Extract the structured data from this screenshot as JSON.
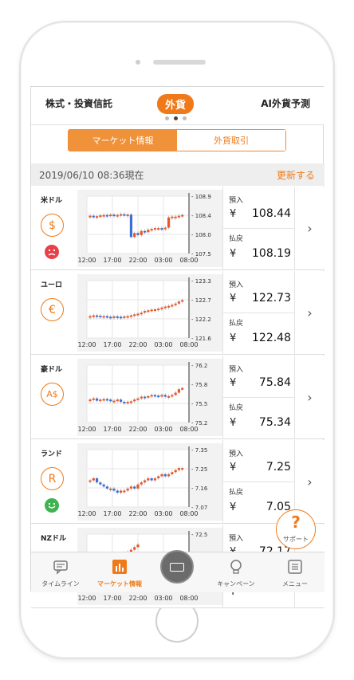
{
  "tabs": {
    "left": "株式・投資信託",
    "center": "外貨",
    "right": "AI外貨予測"
  },
  "segment": {
    "market": "マーケット情報",
    "trade": "外貨取引"
  },
  "datebar": {
    "date": "2019/06/10 08:36現在",
    "refresh": "更新する"
  },
  "labels": {
    "buy": "預入",
    "sell": "払戻",
    "yen": "¥"
  },
  "x_ticks": [
    "12:00",
    "17:00",
    "22:00",
    "03:00",
    "08:00"
  ],
  "currencies": [
    {
      "name": "米ドル",
      "icon": "$",
      "face": "bad",
      "buy": "108.44",
      "sell": "108.19",
      "y_ticks": [
        "108.9",
        "108.4",
        "108.0",
        "107.5"
      ],
      "ylim": [
        107.5,
        108.9
      ],
      "chart_data": {
        "type": "candlestick",
        "values": [
          108.42,
          108.4,
          108.41,
          108.43,
          108.44,
          108.42,
          108.45,
          108.43,
          108.44,
          108.46,
          108.44,
          108.45,
          107.9,
          108.0,
          107.95,
          108.05,
          108.02,
          108.08,
          108.1,
          108.12,
          108.12,
          108.11,
          108.13,
          108.38,
          108.4,
          108.4,
          108.42,
          108.44
        ]
      }
    },
    {
      "name": "ユーロ",
      "icon": "€",
      "face": "",
      "buy": "122.73",
      "sell": "122.48",
      "y_ticks": [
        "123.3",
        "122.7",
        "122.2",
        "121.6"
      ],
      "ylim": [
        121.6,
        123.3
      ],
      "chart_data": {
        "type": "candlestick",
        "values": [
          122.25,
          122.27,
          122.26,
          122.24,
          122.25,
          122.23,
          122.22,
          122.24,
          122.23,
          122.22,
          122.24,
          122.25,
          122.27,
          122.3,
          122.32,
          122.35,
          122.4,
          122.42,
          122.44,
          122.45,
          122.47,
          122.5,
          122.53,
          122.55,
          122.58,
          122.62,
          122.68,
          122.72
        ]
      }
    },
    {
      "name": "豪ドル",
      "icon": "A$",
      "face": "",
      "buy": "75.84",
      "sell": "75.34",
      "y_ticks": [
        "76.2",
        "75.8",
        "75.5",
        "75.2"
      ],
      "ylim": [
        75.2,
        76.2
      ],
      "chart_data": {
        "type": "candlestick",
        "values": [
          75.6,
          75.62,
          75.58,
          75.6,
          75.61,
          75.6,
          75.57,
          75.58,
          75.6,
          75.56,
          75.55,
          75.56,
          75.57,
          75.6,
          75.62,
          75.65,
          75.64,
          75.66,
          75.68,
          75.67,
          75.66,
          75.68,
          75.65,
          75.66,
          75.68,
          75.72,
          75.78,
          75.8
        ]
      }
    },
    {
      "name": "ランド",
      "icon": "R",
      "face": "good",
      "buy": "7.25",
      "sell": "7.05",
      "y_ticks": [
        "7.35",
        "7.25",
        "7.16",
        "7.07"
      ],
      "ylim": [
        7.07,
        7.35
      ],
      "chart_data": {
        "type": "candlestick",
        "values": [
          7.2,
          7.21,
          7.19,
          7.18,
          7.17,
          7.16,
          7.16,
          7.15,
          7.14,
          7.15,
          7.15,
          7.16,
          7.17,
          7.16,
          7.18,
          7.19,
          7.2,
          7.21,
          7.2,
          7.21,
          7.22,
          7.23,
          7.22,
          7.23,
          7.24,
          7.25,
          7.26,
          7.26
        ]
      }
    },
    {
      "name": "NZドル",
      "icon": "",
      "face": "",
      "buy": "72.17",
      "sell": "",
      "y_ticks": [
        "72.5",
        ""
      ],
      "ylim": [
        71.5,
        72.6
      ],
      "chart_data": {
        "type": "candlestick",
        "values": [
          72.1,
          72.12,
          72.15,
          72.14,
          72.13,
          72.16,
          72.15,
          72.17,
          72.2,
          72.22,
          72.24,
          72.26,
          72.3,
          72.35,
          72.4
        ]
      }
    }
  ],
  "support": {
    "q": "?",
    "label": "サポート"
  },
  "nav": {
    "timeline": "タイムライン",
    "market": "マーケット情報",
    "campaign": "キャンペーン",
    "menu": "メニュー"
  },
  "colors": {
    "accent": "#f07a1a",
    "up": "#e8572a",
    "down": "#3b6fd6"
  }
}
